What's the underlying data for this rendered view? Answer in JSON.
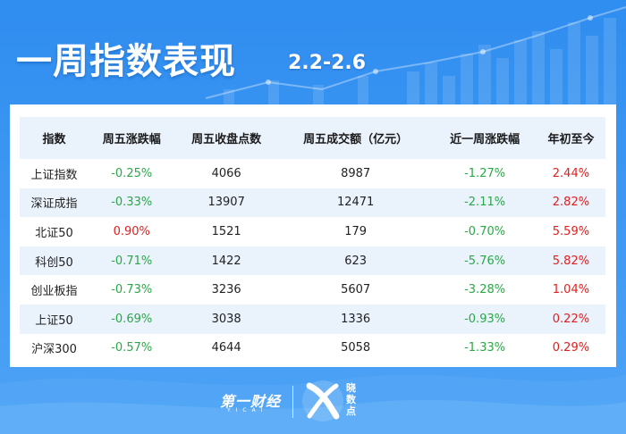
{
  "header": {
    "title": "一周指数表现",
    "date_range": "2.2-2.6"
  },
  "table": {
    "columns": [
      "指数",
      "周五涨跌幅",
      "周五收盘点数",
      "周五成交额（亿元）",
      "近一周涨跌幅",
      "年初至今"
    ],
    "rows": [
      [
        "上证指数",
        "-0.25%",
        "4066",
        "8987",
        "-1.27%",
        "2.44%"
      ],
      [
        "深证成指",
        "-0.33%",
        "13907",
        "12471",
        "-2.11%",
        "2.82%"
      ],
      [
        "北证50",
        "0.90%",
        "1521",
        "179",
        "-0.70%",
        "5.59%"
      ],
      [
        "科创50",
        "-0.71%",
        "1422",
        "623",
        "-5.76%",
        "5.82%"
      ],
      [
        "创业板指",
        "-0.73%",
        "3236",
        "5607",
        "-3.28%",
        "1.04%"
      ],
      [
        "上证50",
        "-0.69%",
        "3038",
        "1336",
        "-0.93%",
        "0.22%"
      ],
      [
        "沪深300",
        "-0.57%",
        "4644",
        "5058",
        "-1.33%",
        "0.29%"
      ]
    ]
  },
  "footer": {
    "brand_cn": "第一财经",
    "brand_en": "YICAI",
    "logo_text": [
      "晓",
      "数",
      "点"
    ]
  },
  "colors": {
    "background": "#2f8df0",
    "up": "#e02020",
    "down": "#2aa847",
    "stripe": "#eaf2fc"
  }
}
